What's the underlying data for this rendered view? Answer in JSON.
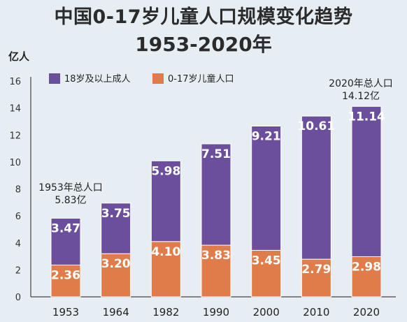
{
  "chart_data": {
    "type": "bar",
    "stacked": true,
    "title": "中国0-17岁儿童人口规模变化趋势",
    "subtitle": "1953-2020年",
    "xlabel": "",
    "ylabel": "亿人",
    "ylim": [
      0,
      16
    ],
    "yticks": [
      "0",
      "2",
      "4",
      "6",
      "8",
      "10",
      "12",
      "14",
      "16"
    ],
    "categories": [
      "1953",
      "1964",
      "1982",
      "1990",
      "2000",
      "2010",
      "2020"
    ],
    "series": [
      {
        "name": "0-17岁儿童人口",
        "color": "#e07b4a",
        "values": [
          2.36,
          3.2,
          4.1,
          3.83,
          3.45,
          2.79,
          2.98
        ],
        "labels": [
          "2.36",
          "3.20",
          "4.10",
          "3.83",
          "3.45",
          "2.79",
          "2.98"
        ]
      },
      {
        "name": "18岁及以上成人",
        "color": "#6b4f9c",
        "values": [
          3.47,
          3.75,
          5.98,
          7.51,
          9.21,
          10.61,
          11.14
        ],
        "labels": [
          "3.47",
          "3.75",
          "5.98",
          "7.51",
          "9.21",
          "10.61",
          "11.14"
        ]
      }
    ],
    "legend": [
      {
        "name": "18岁及以上成人",
        "color": "#6b4f9c"
      },
      {
        "name": "0-17岁儿童人口",
        "color": "#e07b4a"
      }
    ],
    "legend_position": "top-left",
    "grid": false,
    "annotations": [
      {
        "category": "1953",
        "lines": [
          "1953年总人口",
          "5.83亿"
        ]
      },
      {
        "category": "2020",
        "lines": [
          "2020年总人口",
          "14.12亿"
        ]
      }
    ]
  }
}
